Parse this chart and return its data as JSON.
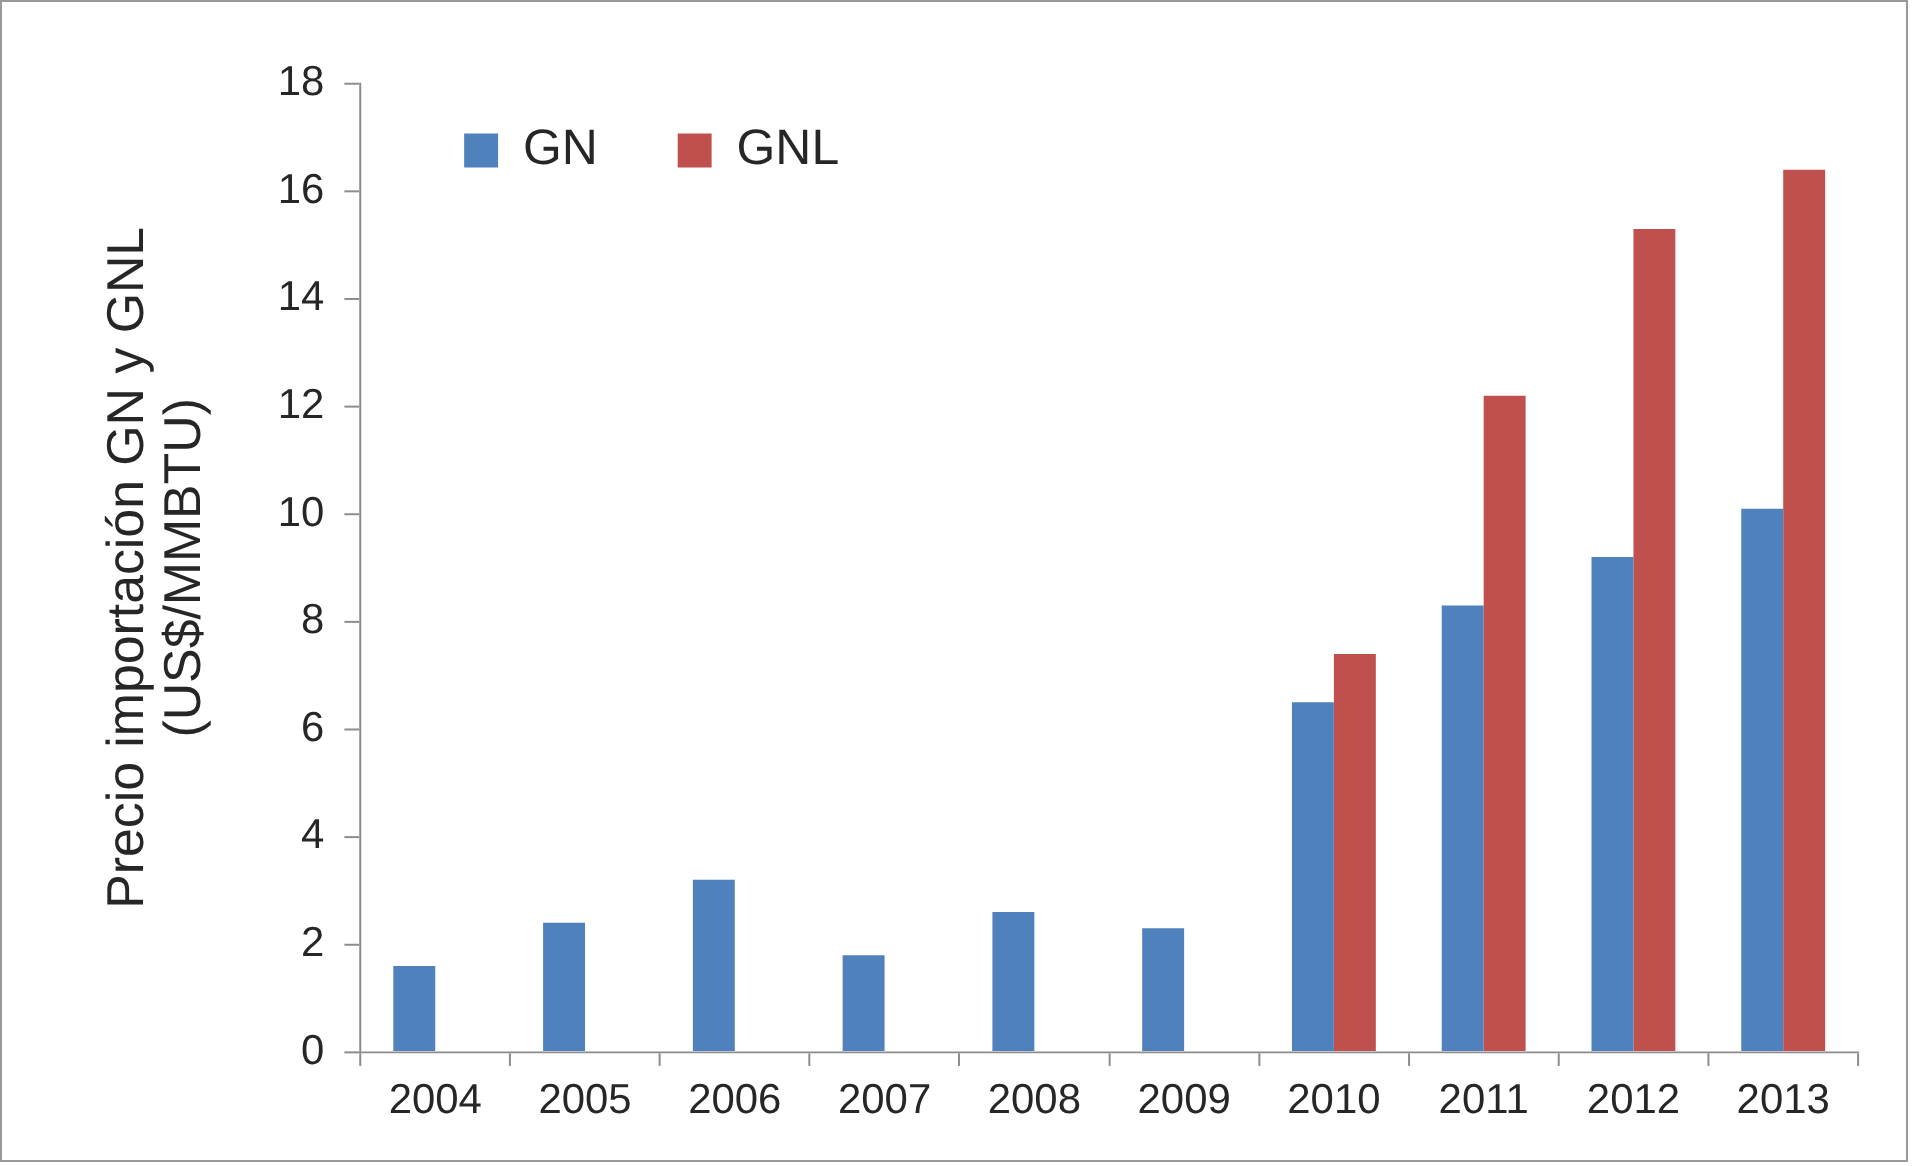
{
  "chart_data": {
    "type": "bar",
    "ylabel": "Precio importación GN y GNL\n(US$/MMBTU)",
    "categories": [
      "2004",
      "2005",
      "2006",
      "2007",
      "2008",
      "2009",
      "2010",
      "2011",
      "2012",
      "2013"
    ],
    "series": [
      {
        "name": "GN",
        "color": "#4f81bd",
        "values": [
          1.6,
          2.4,
          3.2,
          1.8,
          2.6,
          2.3,
          6.5,
          8.3,
          9.2,
          10.1
        ]
      },
      {
        "name": "GNL",
        "color": "#c0504d",
        "values": [
          null,
          null,
          null,
          null,
          null,
          null,
          7.4,
          12.2,
          15.3,
          16.4
        ]
      }
    ],
    "ylim": [
      0,
      18
    ],
    "yticks": [
      0,
      2,
      4,
      6,
      8,
      10,
      12,
      14,
      16,
      18
    ],
    "grid": false,
    "legend": "top left"
  }
}
